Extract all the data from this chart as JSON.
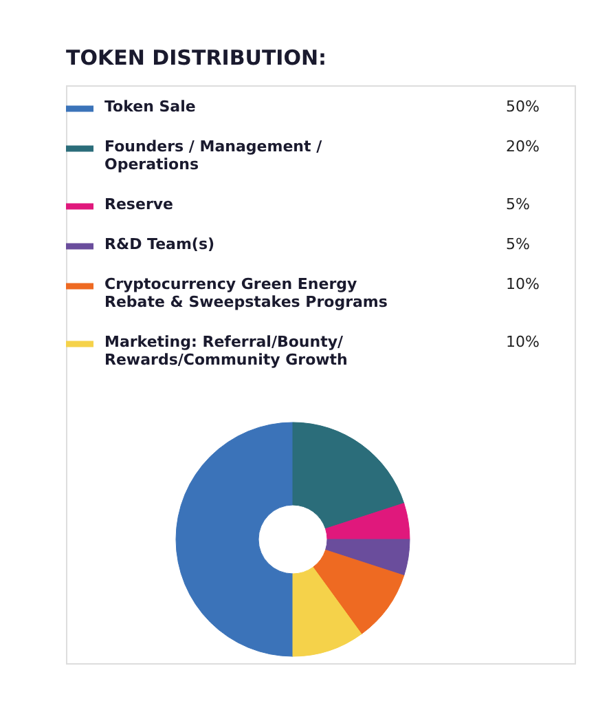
{
  "chart_data": {
    "type": "donut",
    "title": "TOKEN DISTRIBUTION:",
    "categories": [
      "Token Sale",
      "Founders / Management / Operations",
      "Reserve",
      "R&D Team(s)",
      "Cryptocurrency Green Energy Rebate & Sweepstakes Programs",
      "Marketing: Referral/Bounty/ Rewards/Community Growth"
    ],
    "values": [
      50,
      20,
      5,
      5,
      10,
      10
    ],
    "value_labels": [
      "50%",
      "20%",
      "5%",
      "5%",
      "10%",
      "10%"
    ],
    "colors": [
      "#3b73b9",
      "#2b6d7a",
      "#e0187c",
      "#6a4d9c",
      "#ee6a22",
      "#f5d24a"
    ],
    "legend": "top"
  }
}
